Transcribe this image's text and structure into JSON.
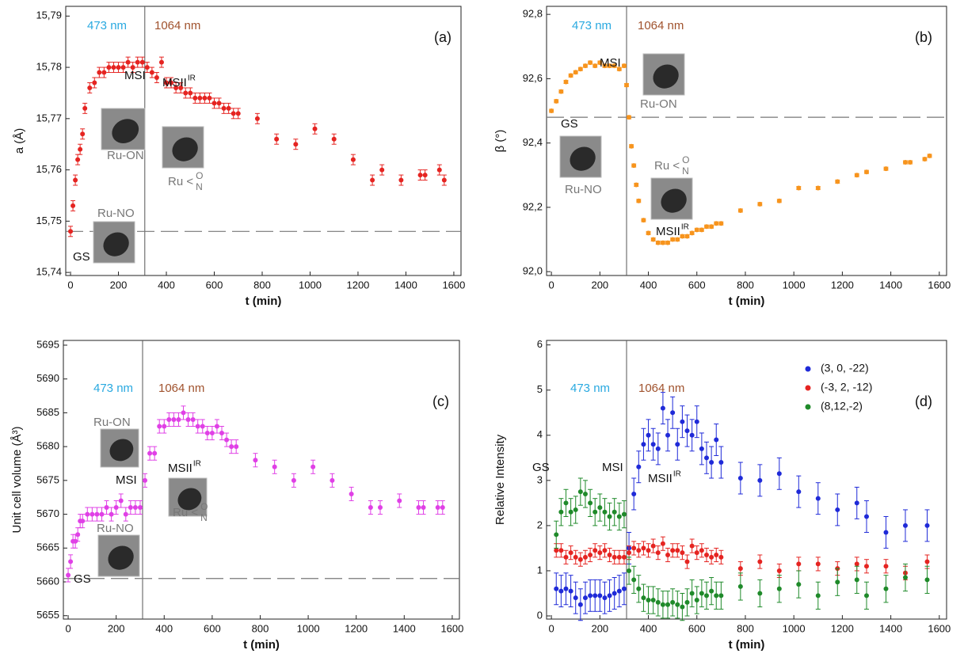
{
  "chart_data": [
    {
      "type": "scatter",
      "ylabel": "a (Å)",
      "xlabel": "t (min)",
      "xlim": [
        -20,
        1630
      ],
      "ylim": [
        15.7394,
        15.7919
      ],
      "xticks": [
        0,
        200,
        400,
        600,
        800,
        1000,
        1200,
        1400,
        1600
      ],
      "yticks": [
        {
          "value": 15.74,
          "label": "15,74"
        },
        {
          "value": 15.75,
          "label": "15,75"
        },
        {
          "value": 15.76,
          "label": "15,76"
        },
        {
          "value": 15.77,
          "label": "15,77"
        },
        {
          "value": 15.78,
          "label": "15,78"
        },
        {
          "value": 15.79,
          "label": "15,79"
        }
      ],
      "divider_x": 310,
      "gs_level": 15.748,
      "x": [
        0,
        10,
        20,
        30,
        40,
        50,
        60,
        80,
        100,
        120,
        140,
        160,
        180,
        200,
        220,
        240,
        260,
        280,
        300,
        320,
        340,
        360,
        380,
        400,
        420,
        440,
        460,
        480,
        500,
        520,
        540,
        560,
        580,
        600,
        620,
        640,
        660,
        680,
        700,
        780,
        860,
        940,
        1020,
        1100,
        1180,
        1260,
        1300,
        1380,
        1460,
        1480,
        1540,
        1560
      ],
      "series": [
        {
          "color": "#e52421",
          "error": 0.001,
          "values": [
            15.748,
            15.753,
            15.758,
            15.762,
            15.764,
            15.767,
            15.772,
            15.776,
            15.777,
            15.779,
            15.779,
            15.78,
            15.78,
            15.78,
            15.78,
            15.781,
            15.78,
            15.781,
            15.781,
            15.78,
            15.779,
            15.778,
            15.781,
            15.777,
            15.777,
            15.776,
            15.776,
            15.775,
            15.775,
            15.774,
            15.774,
            15.774,
            15.774,
            15.773,
            15.773,
            15.772,
            15.772,
            15.771,
            15.771,
            15.77,
            15.766,
            15.765,
            15.768,
            15.766,
            15.762,
            15.758,
            15.76,
            15.758,
            15.759,
            15.759,
            15.76,
            15.758
          ]
        }
      ],
      "annotations": [
        {
          "text": "473 nm",
          "color": "#29a9e0"
        },
        {
          "text": "1064 nm",
          "color": "#a0522d"
        },
        {
          "text": "(a)"
        },
        {
          "text": "MSI"
        },
        {
          "text": "MSII",
          "sup": "IR"
        },
        {
          "text": "GS"
        },
        {
          "text": "Ru-ON",
          "color": "#777777"
        },
        {
          "text": "Ru-NO",
          "color": "#777777"
        },
        {
          "text": "Ru <",
          "upper": "O",
          "lower": "N",
          "color": "#777777"
        }
      ]
    },
    {
      "type": "scatter",
      "ylabel": "β (°)",
      "xlabel": "t (min)",
      "xlim": [
        -20,
        1630
      ],
      "ylim": [
        91.988,
        92.825
      ],
      "xticks": [
        0,
        200,
        400,
        600,
        800,
        1000,
        1200,
        1400,
        1600
      ],
      "yticks": [
        {
          "value": 92.0,
          "label": "92,0"
        },
        {
          "value": 92.2,
          "label": "92,2"
        },
        {
          "value": 92.4,
          "label": "92,4"
        },
        {
          "value": 92.6,
          "label": "92,6"
        },
        {
          "value": 92.8,
          "label": "92,8"
        }
      ],
      "divider_x": 310,
      "gs_level": 92.48,
      "x": [
        0,
        20,
        40,
        60,
        80,
        100,
        120,
        140,
        160,
        180,
        200,
        220,
        240,
        260,
        280,
        300,
        310,
        320,
        330,
        340,
        350,
        360,
        380,
        400,
        420,
        440,
        460,
        480,
        500,
        520,
        540,
        560,
        580,
        600,
        620,
        640,
        660,
        680,
        700,
        780,
        860,
        940,
        1020,
        1100,
        1180,
        1260,
        1300,
        1380,
        1460,
        1480,
        1540,
        1560
      ],
      "series": [
        {
          "color": "#f7941d",
          "error": 0.005,
          "values": [
            92.5,
            92.53,
            92.56,
            92.59,
            92.61,
            92.62,
            92.63,
            92.64,
            92.65,
            92.64,
            92.65,
            92.64,
            92.64,
            92.64,
            92.63,
            92.64,
            92.58,
            92.48,
            92.39,
            92.33,
            92.27,
            92.22,
            92.16,
            92.12,
            92.1,
            92.09,
            92.09,
            92.09,
            92.1,
            92.1,
            92.11,
            92.11,
            92.12,
            92.13,
            92.13,
            92.14,
            92.14,
            92.15,
            92.15,
            92.19,
            92.21,
            92.22,
            92.26,
            92.26,
            92.28,
            92.3,
            92.31,
            92.32,
            92.34,
            92.34,
            92.35,
            92.36
          ]
        }
      ],
      "annotations": [
        {
          "text": "473 nm",
          "color": "#29a9e0"
        },
        {
          "text": "1064 nm",
          "color": "#a0522d"
        },
        {
          "text": "(b)"
        },
        {
          "text": "MSI"
        },
        {
          "text": "GS"
        },
        {
          "text": "Ru-ON",
          "color": "#777777"
        },
        {
          "text": "Ru-NO",
          "color": "#777777"
        },
        {
          "text": "Ru <",
          "upper": "O",
          "lower": "N",
          "color": "#777777"
        },
        {
          "text": "MSII",
          "sup": "IR"
        }
      ]
    },
    {
      "type": "scatter",
      "ylabel": "Unit cell volume (Å³)",
      "xlabel": "t (min)",
      "xlim": [
        -20,
        1630
      ],
      "ylim": [
        5654.5,
        5695.7
      ],
      "xticks": [
        0,
        200,
        400,
        600,
        800,
        1000,
        1200,
        1400,
        1600
      ],
      "yticks": [
        5655,
        5660,
        5665,
        5670,
        5675,
        5680,
        5685,
        5690,
        5695
      ],
      "divider_x": 310,
      "gs_level": 5660.5,
      "x": [
        0,
        10,
        20,
        30,
        40,
        50,
        60,
        80,
        100,
        120,
        140,
        160,
        180,
        200,
        220,
        240,
        260,
        280,
        300,
        320,
        340,
        360,
        380,
        400,
        420,
        440,
        460,
        480,
        500,
        520,
        540,
        560,
        580,
        600,
        620,
        640,
        660,
        680,
        700,
        780,
        860,
        940,
        1020,
        1100,
        1180,
        1260,
        1300,
        1380,
        1460,
        1480,
        1540,
        1560
      ],
      "series": [
        {
          "color": "#e040e6",
          "error": 1,
          "values": [
            5661,
            5663,
            5666,
            5666,
            5667,
            5669,
            5669,
            5670,
            5670,
            5670,
            5670,
            5671,
            5670,
            5671,
            5672,
            5670,
            5671,
            5671,
            5671,
            5675,
            5679,
            5679,
            5683,
            5683,
            5684,
            5684,
            5684,
            5685,
            5684,
            5684,
            5683,
            5683,
            5682,
            5682,
            5683,
            5682,
            5681,
            5680,
            5680,
            5678,
            5677,
            5675,
            5677,
            5675,
            5673,
            5671,
            5671,
            5672,
            5671,
            5671,
            5671,
            5671
          ]
        }
      ],
      "annotations": [
        {
          "text": "473 nm",
          "color": "#29a9e0"
        },
        {
          "text": "1064 nm",
          "color": "#a0522d"
        },
        {
          "text": "(c)"
        },
        {
          "text": "Ru-ON",
          "color": "#777777"
        },
        {
          "text": "MSI"
        },
        {
          "text": "MSII",
          "sup": "IR"
        },
        {
          "text": "Ru <",
          "upper": "O",
          "lower": "N",
          "color": "#777777"
        },
        {
          "text": "Ru-NO",
          "color": "#777777"
        },
        {
          "text": "GS"
        }
      ]
    },
    {
      "type": "scatter",
      "ylabel": "Relative Intensity",
      "xlabel": "t (min)",
      "xlim": [
        -20,
        1630
      ],
      "ylim": [
        -0.07,
        6.1
      ],
      "xticks": [
        0,
        200,
        400,
        600,
        800,
        1000,
        1200,
        1400,
        1600
      ],
      "yticks": [
        0,
        1,
        2,
        3,
        4,
        5,
        6
      ],
      "divider_x": 310,
      "x": [
        20,
        40,
        60,
        80,
        100,
        120,
        140,
        160,
        180,
        200,
        220,
        240,
        260,
        280,
        300,
        320,
        340,
        360,
        380,
        400,
        420,
        440,
        460,
        480,
        500,
        520,
        540,
        560,
        580,
        600,
        620,
        640,
        660,
        680,
        700,
        780,
        860,
        940,
        1020,
        1100,
        1180,
        1260,
        1300,
        1380,
        1460,
        1550
      ],
      "series": [
        {
          "name": "(3, 0, -22)",
          "color": "#1f2ad8",
          "error": 0.35,
          "values": [
            0.6,
            0.55,
            0.6,
            0.55,
            0.4,
            0.25,
            0.4,
            0.45,
            0.45,
            0.45,
            0.4,
            0.45,
            0.5,
            0.55,
            0.6,
            1.5,
            2.7,
            3.3,
            3.8,
            4.0,
            3.8,
            3.7,
            4.6,
            4.0,
            4.5,
            3.8,
            4.3,
            4.1,
            4.0,
            4.3,
            3.7,
            3.5,
            3.4,
            3.9,
            3.4,
            3.05,
            3.0,
            3.15,
            2.75,
            2.6,
            2.35,
            2.5,
            2.2,
            1.85,
            2.0,
            2.0
          ]
        },
        {
          "name": "(-3, 2, -12)",
          "color": "#e52421",
          "error": 0.15,
          "values": [
            1.45,
            1.45,
            1.3,
            1.4,
            1.3,
            1.25,
            1.3,
            1.35,
            1.45,
            1.4,
            1.45,
            1.35,
            1.3,
            1.3,
            1.3,
            1.4,
            1.5,
            1.45,
            1.5,
            1.45,
            1.55,
            1.4,
            1.6,
            1.35,
            1.45,
            1.45,
            1.4,
            1.2,
            1.55,
            1.4,
            1.45,
            1.35,
            1.3,
            1.35,
            1.3,
            1.05,
            1.2,
            1.0,
            1.15,
            1.15,
            1.05,
            1.15,
            1.1,
            1.1,
            0.95,
            1.2
          ]
        },
        {
          "name": "(8,12,-2)",
          "color": "#1f8a2a",
          "error": 0.3,
          "values": [
            1.8,
            2.3,
            2.5,
            2.3,
            2.35,
            2.75,
            2.7,
            2.5,
            2.3,
            2.4,
            2.3,
            2.2,
            2.3,
            2.2,
            2.25,
            1.0,
            0.8,
            0.6,
            0.4,
            0.35,
            0.35,
            0.3,
            0.25,
            0.25,
            0.3,
            0.25,
            0.2,
            0.3,
            0.5,
            0.35,
            0.5,
            0.45,
            0.55,
            0.45,
            0.45,
            0.65,
            0.5,
            0.6,
            0.7,
            0.45,
            0.75,
            0.8,
            0.45,
            0.6,
            0.85,
            0.8
          ]
        }
      ],
      "annotations": [
        {
          "text": "473 nm",
          "color": "#29a9e0"
        },
        {
          "text": "1064 nm",
          "color": "#a0522d"
        },
        {
          "text": "(d)"
        },
        {
          "text": "GS"
        },
        {
          "text": "MSI"
        },
        {
          "text": "MSII",
          "sup": "IR"
        }
      ]
    }
  ]
}
